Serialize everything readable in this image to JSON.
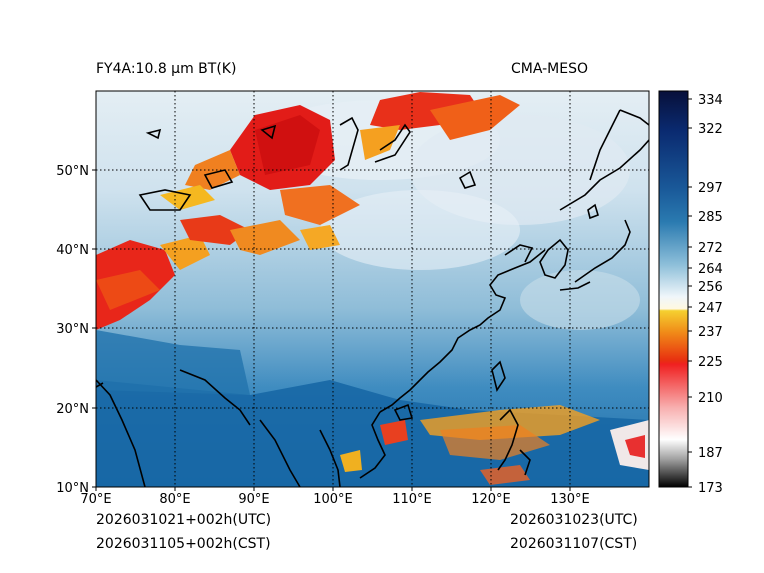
{
  "header": {
    "title_left": "FY4A:10.8 µm BT(K)",
    "title_right": "CMA-MESO"
  },
  "footer": {
    "init_utc": "2026031021+002h(UTC)",
    "init_cst": "2026031105+002h(CST)",
    "valid_utc": "2026031023(UTC)",
    "valid_cst": "2026031107(CST)"
  },
  "map": {
    "lon_labels": [
      "70°E",
      "80°E",
      "90°E",
      "100°E",
      "110°E",
      "120°E",
      "130°E"
    ],
    "lat_labels": [
      "10°N",
      "20°N",
      "30°N",
      "40°N",
      "50°N"
    ],
    "lon_range": [
      70,
      140
    ],
    "lat_range": [
      10,
      60
    ]
  },
  "colorbar": {
    "unit": "K",
    "ticks": [
      "334",
      "322",
      "297",
      "285",
      "272",
      "264",
      "256",
      "247",
      "237",
      "225",
      "210",
      "187",
      "173"
    ],
    "min": 173,
    "max": 336
  },
  "colors": {
    "cold_cloud": "#e8201a",
    "warm_cloud": "#f5c020",
    "clear_warm": "#1f74b0",
    "clear_cool": "#dbe9f2",
    "coastline": "#000000"
  }
}
